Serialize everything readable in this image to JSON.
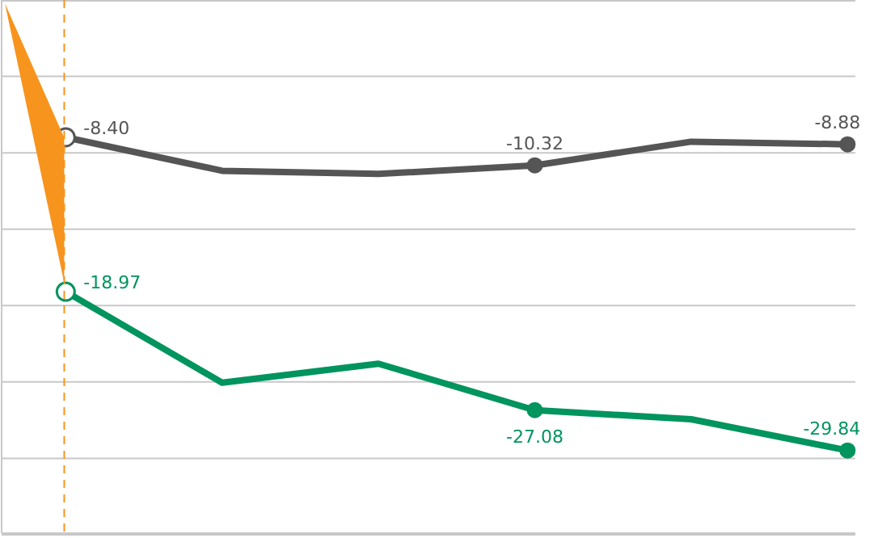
{
  "chart_data": {
    "type": "line",
    "categories": [
      null,
      null,
      null,
      null,
      null,
      null
    ],
    "ylim": [
      -35.5,
      1
    ],
    "tick_labels": false,
    "grid": "y",
    "marker": "circle",
    "line_style": "solid",
    "series": [
      {
        "color": "#555555",
        "values": [
          -8.4,
          -10.69,
          -10.91,
          -10.32,
          -8.7,
          -8.88
        ],
        "value_labels": [
          "-8.40",
          null,
          null,
          "-10.32",
          null,
          "-8.88"
        ]
      },
      {
        "color": "#00945e",
        "values": [
          -18.97,
          -25.2,
          -23.9,
          -27.08,
          -27.7,
          -29.84
        ],
        "value_labels": [
          "-18.97",
          null,
          null,
          "-27.08",
          null,
          "-29.84"
        ]
      }
    ]
  }
}
